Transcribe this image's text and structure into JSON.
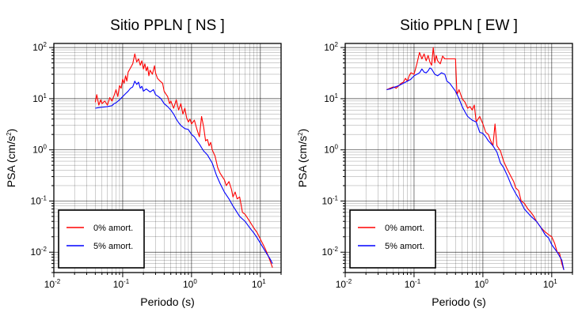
{
  "chart_data": [
    {
      "type": "line",
      "title": "Sitio PPLN [ NS ]",
      "xlabel": "Periodo (s)",
      "ylabel_main": "PSA (cm/s",
      "ylabel_sup": "2",
      "ylabel_close": ")",
      "x_scale": "log",
      "y_scale": "log",
      "xlim": [
        0.01,
        20
      ],
      "ylim": [
        0.004,
        120
      ],
      "grid": true,
      "legend_position": "bottom-left",
      "x_ticks": [
        {
          "base": "10",
          "exp": "-2"
        },
        {
          "base": "10",
          "exp": "-1"
        },
        {
          "base": "10",
          "exp": "0"
        },
        {
          "base": "10",
          "exp": "1"
        }
      ],
      "y_ticks": [
        {
          "base": "10",
          "exp": "-2"
        },
        {
          "base": "10",
          "exp": "-1"
        },
        {
          "base": "10",
          "exp": "0"
        },
        {
          "base": "10",
          "exp": "1"
        },
        {
          "base": "10",
          "exp": "2"
        }
      ],
      "series": [
        {
          "name": "0% amort.",
          "color": "#ff0000",
          "x": [
            0.04,
            0.042,
            0.045,
            0.048,
            0.05,
            0.055,
            0.06,
            0.065,
            0.07,
            0.075,
            0.08,
            0.085,
            0.09,
            0.095,
            0.1,
            0.105,
            0.11,
            0.115,
            0.12,
            0.13,
            0.14,
            0.15,
            0.16,
            0.17,
            0.18,
            0.19,
            0.2,
            0.21,
            0.22,
            0.23,
            0.24,
            0.25,
            0.27,
            0.29,
            0.3,
            0.32,
            0.35,
            0.38,
            0.4,
            0.43,
            0.45,
            0.48,
            0.5,
            0.55,
            0.6,
            0.65,
            0.7,
            0.75,
            0.8,
            0.85,
            0.9,
            0.95,
            1.0,
            1.1,
            1.2,
            1.3,
            1.4,
            1.5,
            1.6,
            1.7,
            1.8,
            1.9,
            2.0,
            2.2,
            2.4,
            2.6,
            2.8,
            3.0,
            3.2,
            3.5,
            3.8,
            4.0,
            4.3,
            4.6,
            5.0,
            5.5,
            6.0,
            7.0,
            8.0,
            9.0,
            10.0,
            11.0,
            12.0,
            13.0,
            14.0,
            15.0
          ],
          "y": [
            8.5,
            12.0,
            7.5,
            9.5,
            8.0,
            9.0,
            7.5,
            10.5,
            9.0,
            11.5,
            15.0,
            11.0,
            18.0,
            16.0,
            24.0,
            20.0,
            28.0,
            22.0,
            33.0,
            40.0,
            48.0,
            75.0,
            52.0,
            60.0,
            45.0,
            55.0,
            38.0,
            48.0,
            35.0,
            42.0,
            28.0,
            36.0,
            30.0,
            44.0,
            32.0,
            25.0,
            22.0,
            20.0,
            14.0,
            12.0,
            11.0,
            8.0,
            9.0,
            6.5,
            9.5,
            6.0,
            8.0,
            5.0,
            6.5,
            4.2,
            3.5,
            4.0,
            3.2,
            3.8,
            2.5,
            1.8,
            4.5,
            2.8,
            1.5,
            1.6,
            1.2,
            1.4,
            1.0,
            0.75,
            0.45,
            0.35,
            0.3,
            0.26,
            0.2,
            0.24,
            0.17,
            0.12,
            0.15,
            0.11,
            0.12,
            0.06,
            0.055,
            0.04,
            0.03,
            0.024,
            0.018,
            0.014,
            0.011,
            0.0085,
            0.0065,
            0.005
          ]
        },
        {
          "name": "5% amort.",
          "color": "#0000ff",
          "x": [
            0.04,
            0.045,
            0.05,
            0.06,
            0.07,
            0.075,
            0.08,
            0.09,
            0.1,
            0.11,
            0.12,
            0.13,
            0.14,
            0.15,
            0.16,
            0.17,
            0.18,
            0.19,
            0.2,
            0.22,
            0.25,
            0.28,
            0.3,
            0.33,
            0.36,
            0.4,
            0.45,
            0.5,
            0.55,
            0.6,
            0.65,
            0.7,
            0.8,
            0.9,
            1.0,
            1.1,
            1.2,
            1.3,
            1.4,
            1.5,
            1.7,
            2.0,
            2.3,
            2.6,
            3.0,
            3.5,
            4.0,
            5.0,
            6.0,
            7.0,
            8.0,
            9.0,
            10.0,
            12.0,
            14.0,
            15.0
          ],
          "y": [
            6.5,
            6.7,
            6.8,
            7.0,
            7.3,
            8.0,
            8.3,
            9.5,
            11.0,
            12.5,
            14.0,
            16.0,
            17.0,
            22.0,
            19.0,
            21.0,
            16.0,
            17.5,
            14.0,
            15.5,
            13.5,
            15.0,
            12.0,
            11.0,
            10.0,
            8.0,
            7.0,
            6.0,
            5.0,
            4.0,
            3.4,
            3.0,
            2.6,
            2.5,
            2.0,
            1.8,
            1.5,
            1.3,
            1.1,
            0.95,
            0.8,
            0.55,
            0.32,
            0.22,
            0.15,
            0.11,
            0.08,
            0.05,
            0.04,
            0.03,
            0.024,
            0.019,
            0.015,
            0.01,
            0.0072,
            0.006
          ]
        }
      ]
    },
    {
      "type": "line",
      "title": "Sitio PPLN [ EW ]",
      "xlabel": "Periodo (s)",
      "ylabel_main": "PSA (cm/s",
      "ylabel_sup": "2",
      "ylabel_close": ")",
      "x_scale": "log",
      "y_scale": "log",
      "xlim": [
        0.01,
        20
      ],
      "ylim": [
        0.004,
        120
      ],
      "grid": true,
      "legend_position": "bottom-left",
      "x_ticks": [
        {
          "base": "10",
          "exp": "-2"
        },
        {
          "base": "10",
          "exp": "-1"
        },
        {
          "base": "10",
          "exp": "0"
        },
        {
          "base": "10",
          "exp": "1"
        }
      ],
      "y_ticks": [
        {
          "base": "10",
          "exp": "-2"
        },
        {
          "base": "10",
          "exp": "-1"
        },
        {
          "base": "10",
          "exp": "0"
        },
        {
          "base": "10",
          "exp": "1"
        },
        {
          "base": "10",
          "exp": "2"
        }
      ],
      "series": [
        {
          "name": "0% amort.",
          "color": "#ff0000",
          "x": [
            0.04,
            0.045,
            0.05,
            0.055,
            0.06,
            0.065,
            0.07,
            0.075,
            0.08,
            0.085,
            0.09,
            0.1,
            0.11,
            0.12,
            0.13,
            0.14,
            0.15,
            0.16,
            0.17,
            0.18,
            0.19,
            0.2,
            0.21,
            0.22,
            0.24,
            0.26,
            0.28,
            0.3,
            0.33,
            0.36,
            0.4,
            0.42,
            0.45,
            0.5,
            0.55,
            0.6,
            0.65,
            0.7,
            0.75,
            0.8,
            0.85,
            0.9,
            1.0,
            1.1,
            1.2,
            1.3,
            1.4,
            1.5,
            1.6,
            1.8,
            2.0,
            2.2,
            2.5,
            2.8,
            3.0,
            3.3,
            3.6,
            4.0,
            4.5,
            5.0,
            5.5,
            6.0,
            7.0,
            8.0,
            9.0,
            10.0,
            11.0,
            12.0,
            13.0,
            14.0,
            15.0
          ],
          "y": [
            15.0,
            16.0,
            17.0,
            16.0,
            18.0,
            20.0,
            21.0,
            25.0,
            22.0,
            28.0,
            32.0,
            30.0,
            48.0,
            80.0,
            60.0,
            75.0,
            55.0,
            70.0,
            52.0,
            45.0,
            100.0,
            50.0,
            70.0,
            55.0,
            48.0,
            68.0,
            60.0,
            60.0,
            60.0,
            60.0,
            60.0,
            12.0,
            15.0,
            10.0,
            8.5,
            6.5,
            7.0,
            6.0,
            7.5,
            3.5,
            4.0,
            4.5,
            3.2,
            2.2,
            2.0,
            1.5,
            1.2,
            3.2,
            1.2,
            0.95,
            0.6,
            0.45,
            0.32,
            0.24,
            0.18,
            0.16,
            0.1,
            0.09,
            0.07,
            0.06,
            0.05,
            0.04,
            0.03,
            0.025,
            0.022,
            0.02,
            0.015,
            0.01,
            0.0095,
            0.006,
            0.0045
          ]
        },
        {
          "name": "5% amort.",
          "color": "#0000ff",
          "x": [
            0.04,
            0.045,
            0.05,
            0.06,
            0.07,
            0.08,
            0.09,
            0.1,
            0.11,
            0.12,
            0.13,
            0.14,
            0.15,
            0.16,
            0.17,
            0.18,
            0.2,
            0.22,
            0.25,
            0.28,
            0.3,
            0.33,
            0.36,
            0.4,
            0.45,
            0.5,
            0.55,
            0.6,
            0.7,
            0.8,
            0.9,
            1.0,
            1.1,
            1.2,
            1.4,
            1.6,
            1.8,
            2.0,
            2.3,
            2.6,
            3.0,
            3.5,
            4.0,
            5.0,
            6.0,
            7.0,
            8.0,
            9.0,
            10.0,
            12.0,
            14.0,
            15.0
          ],
          "y": [
            15.0,
            15.5,
            16.5,
            18.0,
            20.0,
            22.0,
            24.0,
            28.0,
            30.0,
            32.0,
            38.0,
            33.0,
            32.0,
            35.0,
            40.0,
            38.0,
            30.0,
            28.0,
            32.0,
            30.0,
            22.0,
            20.0,
            17.0,
            14.0,
            10.0,
            7.0,
            5.5,
            4.5,
            3.8,
            3.5,
            2.2,
            2.1,
            1.8,
            1.5,
            1.2,
            0.9,
            0.55,
            0.45,
            0.3,
            0.2,
            0.14,
            0.1,
            0.07,
            0.05,
            0.04,
            0.03,
            0.022,
            0.019,
            0.014,
            0.01,
            0.007,
            0.0045
          ]
        }
      ]
    }
  ]
}
